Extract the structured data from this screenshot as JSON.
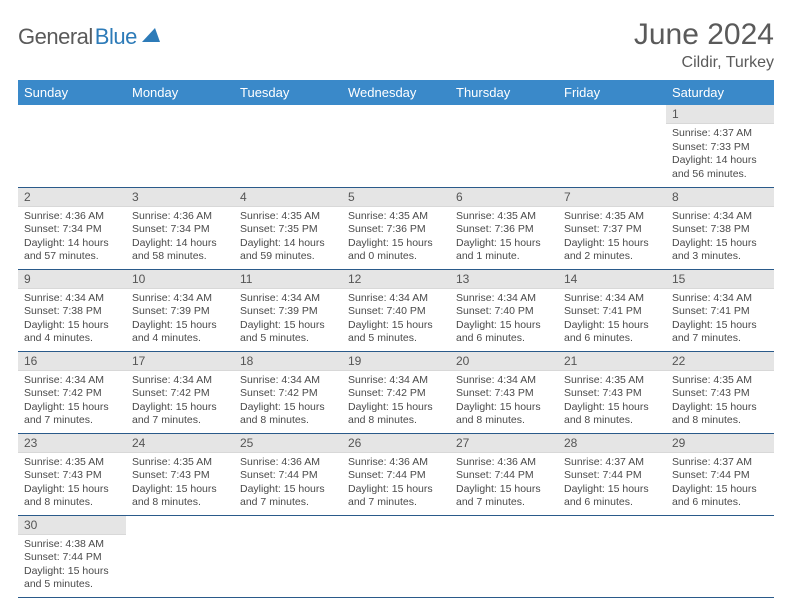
{
  "logo": {
    "text1": "General",
    "text2": "Blue",
    "triangle_color": "#2d7bb8"
  },
  "header": {
    "month_title": "June 2024",
    "location": "Cildir, Turkey"
  },
  "colors": {
    "header_bg": "#3a89c9",
    "header_text": "#ffffff",
    "daynum_bg": "#e5e5e5",
    "row_divider": "#2a5a8a",
    "text": "#4a4a4a"
  },
  "typography": {
    "title_fontsize": 30,
    "location_fontsize": 16,
    "dayheader_fontsize": 13,
    "body_fontsize": 10.5
  },
  "calendar": {
    "day_headers": [
      "Sunday",
      "Monday",
      "Tuesday",
      "Wednesday",
      "Thursday",
      "Friday",
      "Saturday"
    ],
    "first_weekday_index": 6,
    "days": [
      {
        "n": 1,
        "sunrise": "4:37 AM",
        "sunset": "7:33 PM",
        "daylight": "14 hours and 56 minutes."
      },
      {
        "n": 2,
        "sunrise": "4:36 AM",
        "sunset": "7:34 PM",
        "daylight": "14 hours and 57 minutes."
      },
      {
        "n": 3,
        "sunrise": "4:36 AM",
        "sunset": "7:34 PM",
        "daylight": "14 hours and 58 minutes."
      },
      {
        "n": 4,
        "sunrise": "4:35 AM",
        "sunset": "7:35 PM",
        "daylight": "14 hours and 59 minutes."
      },
      {
        "n": 5,
        "sunrise": "4:35 AM",
        "sunset": "7:36 PM",
        "daylight": "15 hours and 0 minutes."
      },
      {
        "n": 6,
        "sunrise": "4:35 AM",
        "sunset": "7:36 PM",
        "daylight": "15 hours and 1 minute."
      },
      {
        "n": 7,
        "sunrise": "4:35 AM",
        "sunset": "7:37 PM",
        "daylight": "15 hours and 2 minutes."
      },
      {
        "n": 8,
        "sunrise": "4:34 AM",
        "sunset": "7:38 PM",
        "daylight": "15 hours and 3 minutes."
      },
      {
        "n": 9,
        "sunrise": "4:34 AM",
        "sunset": "7:38 PM",
        "daylight": "15 hours and 4 minutes."
      },
      {
        "n": 10,
        "sunrise": "4:34 AM",
        "sunset": "7:39 PM",
        "daylight": "15 hours and 4 minutes."
      },
      {
        "n": 11,
        "sunrise": "4:34 AM",
        "sunset": "7:39 PM",
        "daylight": "15 hours and 5 minutes."
      },
      {
        "n": 12,
        "sunrise": "4:34 AM",
        "sunset": "7:40 PM",
        "daylight": "15 hours and 5 minutes."
      },
      {
        "n": 13,
        "sunrise": "4:34 AM",
        "sunset": "7:40 PM",
        "daylight": "15 hours and 6 minutes."
      },
      {
        "n": 14,
        "sunrise": "4:34 AM",
        "sunset": "7:41 PM",
        "daylight": "15 hours and 6 minutes."
      },
      {
        "n": 15,
        "sunrise": "4:34 AM",
        "sunset": "7:41 PM",
        "daylight": "15 hours and 7 minutes."
      },
      {
        "n": 16,
        "sunrise": "4:34 AM",
        "sunset": "7:42 PM",
        "daylight": "15 hours and 7 minutes."
      },
      {
        "n": 17,
        "sunrise": "4:34 AM",
        "sunset": "7:42 PM",
        "daylight": "15 hours and 7 minutes."
      },
      {
        "n": 18,
        "sunrise": "4:34 AM",
        "sunset": "7:42 PM",
        "daylight": "15 hours and 8 minutes."
      },
      {
        "n": 19,
        "sunrise": "4:34 AM",
        "sunset": "7:42 PM",
        "daylight": "15 hours and 8 minutes."
      },
      {
        "n": 20,
        "sunrise": "4:34 AM",
        "sunset": "7:43 PM",
        "daylight": "15 hours and 8 minutes."
      },
      {
        "n": 21,
        "sunrise": "4:35 AM",
        "sunset": "7:43 PM",
        "daylight": "15 hours and 8 minutes."
      },
      {
        "n": 22,
        "sunrise": "4:35 AM",
        "sunset": "7:43 PM",
        "daylight": "15 hours and 8 minutes."
      },
      {
        "n": 23,
        "sunrise": "4:35 AM",
        "sunset": "7:43 PM",
        "daylight": "15 hours and 8 minutes."
      },
      {
        "n": 24,
        "sunrise": "4:35 AM",
        "sunset": "7:43 PM",
        "daylight": "15 hours and 8 minutes."
      },
      {
        "n": 25,
        "sunrise": "4:36 AM",
        "sunset": "7:44 PM",
        "daylight": "15 hours and 7 minutes."
      },
      {
        "n": 26,
        "sunrise": "4:36 AM",
        "sunset": "7:44 PM",
        "daylight": "15 hours and 7 minutes."
      },
      {
        "n": 27,
        "sunrise": "4:36 AM",
        "sunset": "7:44 PM",
        "daylight": "15 hours and 7 minutes."
      },
      {
        "n": 28,
        "sunrise": "4:37 AM",
        "sunset": "7:44 PM",
        "daylight": "15 hours and 6 minutes."
      },
      {
        "n": 29,
        "sunrise": "4:37 AM",
        "sunset": "7:44 PM",
        "daylight": "15 hours and 6 minutes."
      },
      {
        "n": 30,
        "sunrise": "4:38 AM",
        "sunset": "7:44 PM",
        "daylight": "15 hours and 5 minutes."
      }
    ],
    "labels": {
      "sunrise": "Sunrise:",
      "sunset": "Sunset:",
      "daylight": "Daylight:"
    }
  }
}
